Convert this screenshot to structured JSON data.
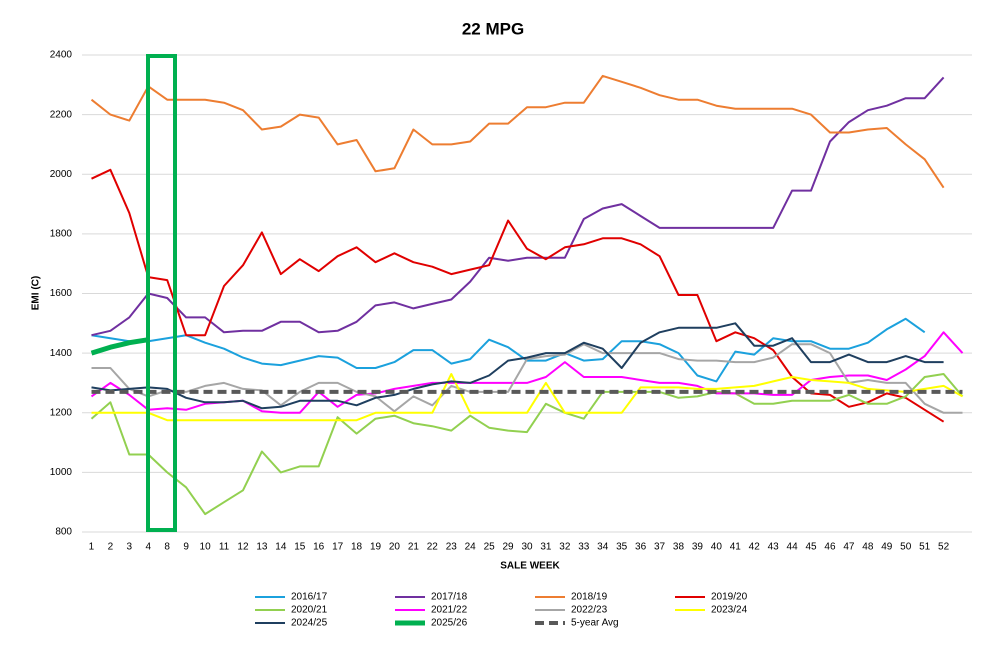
{
  "chart_data": {
    "type": "line",
    "title": "22 MPG",
    "x_label": "SALE WEEK",
    "y_label": "EMI (C)",
    "categories": [
      "1",
      "2",
      "3",
      "4",
      "8",
      "9",
      "10",
      "11",
      "12",
      "13",
      "14",
      "15",
      "16",
      "17",
      "18",
      "19",
      "20",
      "21",
      "22",
      "23",
      "24",
      "25",
      "29",
      "30",
      "31",
      "32",
      "33",
      "34",
      "35",
      "36",
      "37",
      "38",
      "39",
      "40",
      "41",
      "42",
      "43",
      "44",
      "45",
      "46",
      "47",
      "48",
      "49",
      "50",
      "51",
      "52",
      null
    ],
    "ylim": [
      800,
      2400
    ],
    "yticks": [
      800,
      1000,
      1200,
      1400,
      1600,
      1800,
      2000,
      2200,
      2400
    ],
    "grid": true,
    "legend": "bottom",
    "series": [
      {
        "name": "2016/17",
        "color": "#1ba1dd",
        "values": [
          1460,
          1450,
          1440,
          1440,
          1450,
          1460,
          1435,
          1415,
          1385,
          1365,
          1360,
          1375,
          1390,
          1385,
          1350,
          1350,
          1370,
          1410,
          1410,
          1365,
          1380,
          1445,
          1420,
          1375,
          1375,
          1400,
          1375,
          1380,
          1440,
          1440,
          1430,
          1400,
          1325,
          1305,
          1405,
          1395,
          1450,
          1440,
          1440,
          1415,
          1415,
          1435,
          1480,
          1515,
          1470,
          null,
          null
        ]
      },
      {
        "name": "2017/18",
        "color": "#7030a0",
        "values": [
          1460,
          1475,
          1520,
          1600,
          1585,
          1520,
          1520,
          1470,
          1475,
          1475,
          1505,
          1505,
          1470,
          1475,
          1505,
          1560,
          1570,
          1550,
          1565,
          1580,
          1640,
          1720,
          1710,
          1720,
          1720,
          1720,
          1850,
          1885,
          1900,
          1860,
          1820,
          1820,
          1820,
          1820,
          1820,
          1820,
          1820,
          1945,
          1945,
          2110,
          2175,
          2215,
          2230,
          2255,
          2255,
          2325,
          null
        ]
      },
      {
        "name": "2018/19",
        "color": "#ed7d31",
        "values": [
          2250,
          2200,
          2180,
          2295,
          2250,
          2250,
          2250,
          2240,
          2215,
          2150,
          2160,
          2200,
          2190,
          2100,
          2115,
          2010,
          2020,
          2150,
          2100,
          2100,
          2110,
          2170,
          2170,
          2225,
          2225,
          2240,
          2240,
          2330,
          2310,
          2290,
          2265,
          2250,
          2250,
          2230,
          2220,
          2220,
          2220,
          2220,
          2200,
          2140,
          2140,
          2150,
          2155,
          2100,
          2050,
          1955,
          null
        ]
      },
      {
        "name": "2019/20",
        "color": "#e00000",
        "values": [
          1985,
          2015,
          1870,
          1655,
          1645,
          1460,
          1460,
          1625,
          1695,
          1805,
          1665,
          1715,
          1675,
          1725,
          1755,
          1705,
          1735,
          1705,
          1690,
          1665,
          1680,
          1695,
          1845,
          1750,
          1715,
          1755,
          1765,
          1785,
          1785,
          1765,
          1725,
          1595,
          1595,
          1440,
          1470,
          1450,
          1410,
          1320,
          1265,
          1260,
          1220,
          1235,
          1265,
          1250,
          1210,
          1170,
          null
        ]
      },
      {
        "name": "2020/21",
        "color": "#92d050",
        "values": [
          1180,
          1235,
          1060,
          1060,
          1000,
          950,
          860,
          900,
          940,
          1070,
          1000,
          1020,
          1020,
          1185,
          1130,
          1180,
          1190,
          1165,
          1155,
          1140,
          1190,
          1150,
          1140,
          1135,
          1230,
          1200,
          1180,
          1270,
          1270,
          1270,
          1270,
          1250,
          1255,
          1270,
          1265,
          1230,
          1230,
          1240,
          1240,
          1240,
          1260,
          1230,
          1230,
          1255,
          1320,
          1330,
          1255
        ]
      },
      {
        "name": "2021/22",
        "color": "#ff00ff",
        "values": [
          1255,
          1300,
          1260,
          1210,
          1215,
          1210,
          1230,
          1235,
          1240,
          1205,
          1200,
          1200,
          1270,
          1220,
          1260,
          1265,
          1280,
          1290,
          1300,
          1300,
          1300,
          1300,
          1300,
          1300,
          1320,
          1370,
          1320,
          1320,
          1320,
          1310,
          1300,
          1300,
          1290,
          1265,
          1265,
          1265,
          1260,
          1260,
          1310,
          1320,
          1325,
          1325,
          1310,
          1345,
          1390,
          1470,
          1400
        ]
      },
      {
        "name": "2022/23",
        "color": "#a6a6a6",
        "values": [
          1350,
          1350,
          1280,
          1255,
          1275,
          1270,
          1290,
          1300,
          1280,
          1275,
          1225,
          1270,
          1300,
          1300,
          1270,
          1255,
          1205,
          1255,
          1225,
          1290,
          1270,
          1270,
          1270,
          1380,
          1390,
          1395,
          1430,
          1400,
          1400,
          1400,
          1400,
          1380,
          1375,
          1375,
          1370,
          1370,
          1385,
          1430,
          1430,
          1400,
          1300,
          1310,
          1300,
          1300,
          1230,
          1200,
          1200
        ]
      },
      {
        "name": "2023/24",
        "color": "#ffff00",
        "values": [
          1200,
          1200,
          1200,
          1200,
          1175,
          1175,
          1175,
          1175,
          1175,
          1175,
          1175,
          1175,
          1175,
          1175,
          1175,
          1200,
          1200,
          1200,
          1200,
          1330,
          1200,
          1200,
          1200,
          1200,
          1300,
          1200,
          1200,
          1200,
          1200,
          1285,
          1285,
          1285,
          1280,
          1280,
          1285,
          1290,
          1305,
          1320,
          1310,
          1305,
          1300,
          1280,
          1275,
          1270,
          1280,
          1290,
          1255
        ]
      },
      {
        "name": "2024/25",
        "color": "#1f3f5f",
        "values": [
          1285,
          1275,
          1280,
          1285,
          1280,
          1250,
          1235,
          1235,
          1240,
          1215,
          1220,
          1240,
          1240,
          1240,
          1225,
          1250,
          1260,
          1280,
          1295,
          1305,
          1300,
          1325,
          1375,
          1385,
          1400,
          1400,
          1435,
          1415,
          1350,
          1435,
          1470,
          1485,
          1485,
          1485,
          1500,
          1425,
          1425,
          1450,
          1370,
          1370,
          1395,
          1370,
          1370,
          1390,
          1370,
          1370,
          null
        ]
      },
      {
        "name": "2025/26",
        "color": "#00b050",
        "line_width": 5,
        "values": [
          1400,
          1420,
          1435,
          1445,
          null,
          null,
          null,
          null,
          null,
          null,
          null,
          null,
          null,
          null,
          null,
          null,
          null,
          null,
          null,
          null,
          null,
          null,
          null,
          null,
          null,
          null,
          null,
          null,
          null,
          null,
          null,
          null,
          null,
          null,
          null,
          null,
          null,
          null,
          null,
          null,
          null,
          null,
          null,
          null,
          null,
          null,
          null
        ]
      },
      {
        "name": "5-year Avg",
        "color": "#595959",
        "line_width": 4,
        "dashed": true,
        "values": [
          1270,
          1270,
          1270,
          1270,
          1270,
          1270,
          1270,
          1270,
          1270,
          1270,
          1270,
          1270,
          1270,
          1270,
          1270,
          1270,
          1270,
          1270,
          1270,
          1270,
          1270,
          1270,
          1270,
          1270,
          1270,
          1270,
          1270,
          1270,
          1270,
          1270,
          1270,
          1270,
          1270,
          1270,
          1270,
          1270,
          1270,
          1270,
          1270,
          1270,
          1270,
          1270,
          1270,
          1270,
          1270,
          1270,
          1270
        ]
      }
    ]
  }
}
